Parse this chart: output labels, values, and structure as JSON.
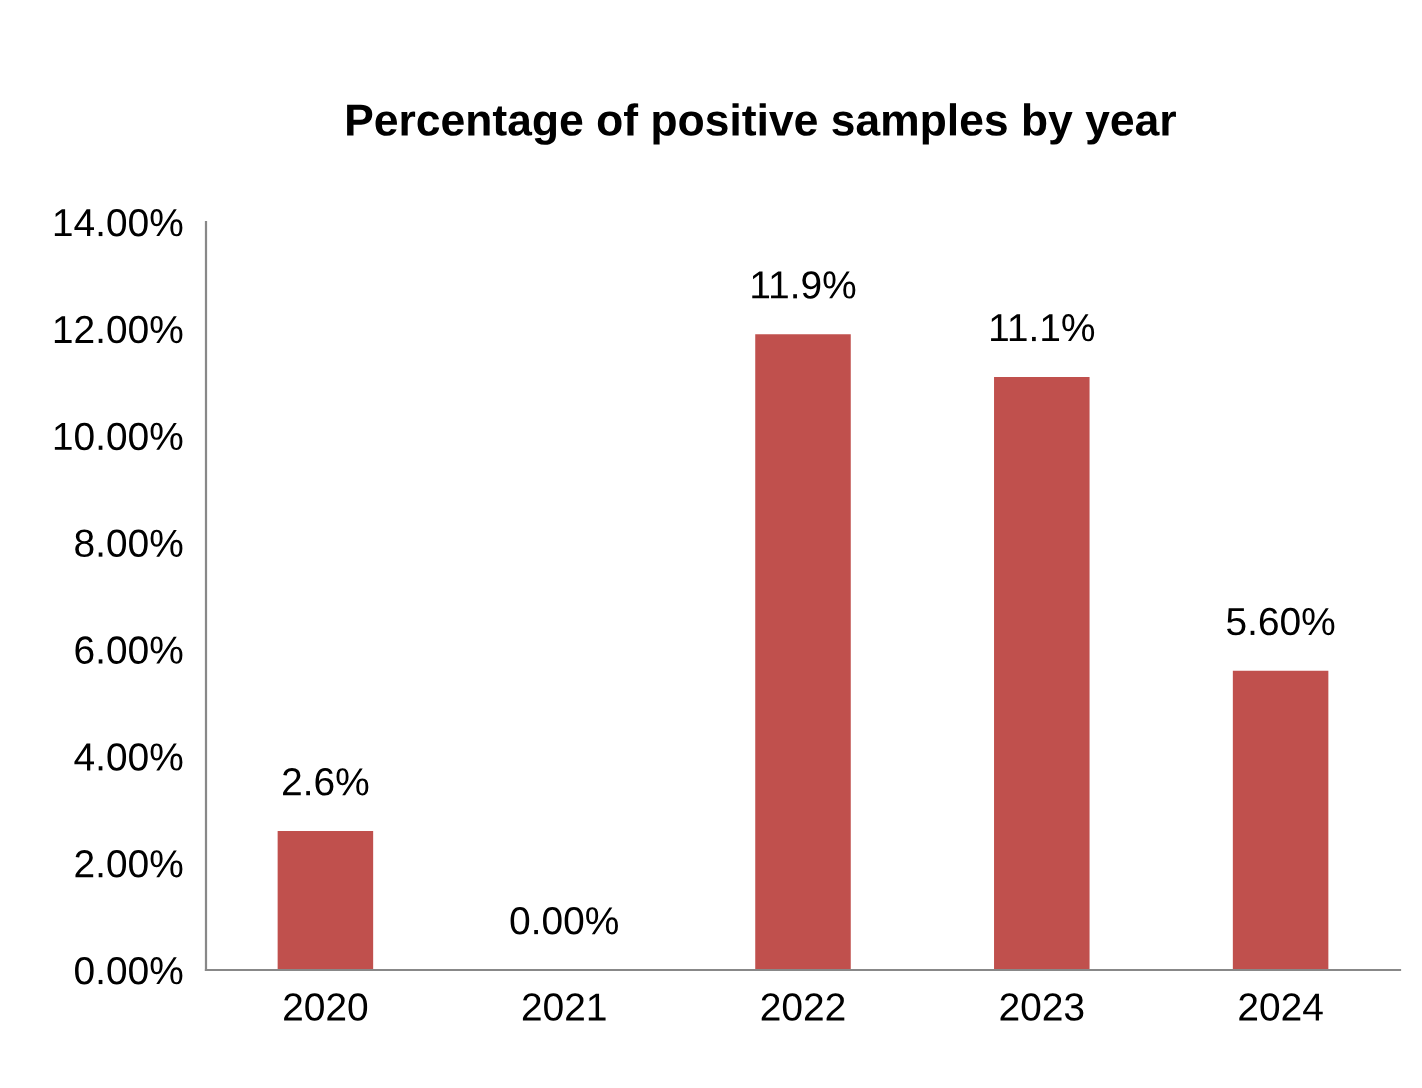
{
  "chart_data": {
    "type": "bar",
    "title": "Percentage of positive samples by year",
    "categories": [
      "2020",
      "2021",
      "2022",
      "2023",
      "2024"
    ],
    "values": [
      2.6,
      0.0,
      11.9,
      11.1,
      5.6
    ],
    "value_labels": [
      "2.6%",
      "0.00%",
      "11.9%",
      "11.1%",
      "5.60%"
    ],
    "color": "#c0504d",
    "ylim": [
      0,
      14
    ],
    "yticks": [
      {
        "value": 0,
        "label": "0.00%"
      },
      {
        "value": 2,
        "label": "2.00%"
      },
      {
        "value": 4,
        "label": "4.00%"
      },
      {
        "value": 6,
        "label": "6.00%"
      },
      {
        "value": 8,
        "label": "8.00%"
      },
      {
        "value": 10,
        "label": "10.00%"
      },
      {
        "value": 12,
        "label": "12.00%"
      },
      {
        "value": 14,
        "label": "14.00%"
      }
    ],
    "grid": false,
    "legend": false
  }
}
